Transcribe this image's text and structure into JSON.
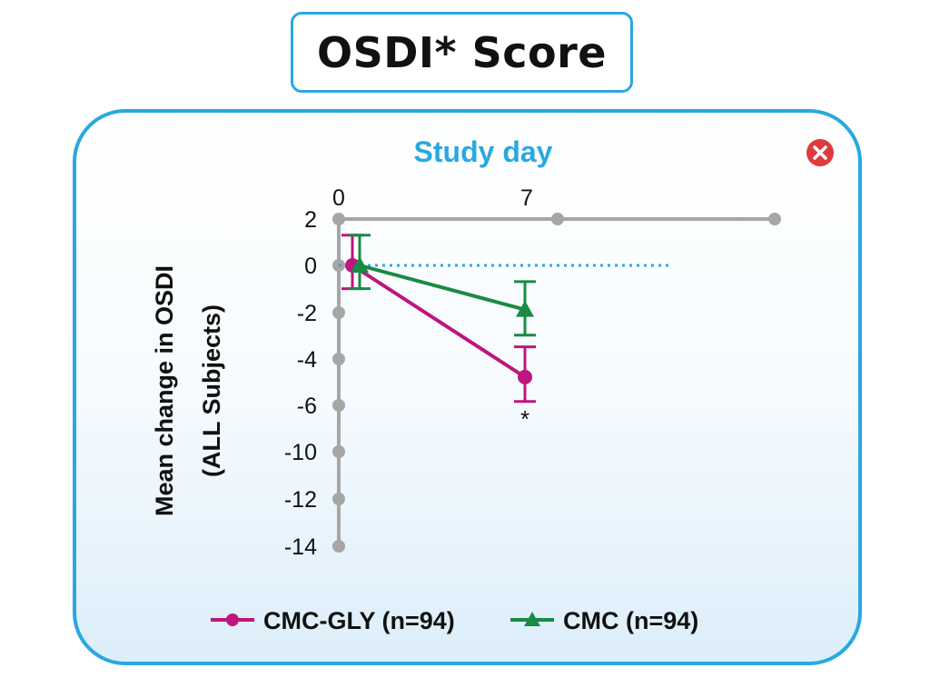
{
  "page": {
    "title": "OSDI* Score"
  },
  "close_button": {
    "icon": "close-icon",
    "color": "#e03a3e"
  },
  "chart_data": {
    "type": "line",
    "title": "",
    "xlabel": "Study day",
    "ylabel_line1": "Mean change in OSDI",
    "ylabel_line2": "(ALL Subjects)",
    "x_tick_labels": [
      "0",
      "7"
    ],
    "y_ticks": [
      "2",
      "0",
      "-2",
      "-4",
      "-6",
      "-10",
      "-12",
      "-14"
    ],
    "series": [
      {
        "name": "CMC-GLY (n=94)",
        "color": "#c0147e",
        "marker": "circle",
        "x": [
          0,
          7
        ],
        "y": [
          0,
          -4.8
        ],
        "err_low": [
          1.0,
          1.05
        ],
        "err_high": [
          1.3,
          1.3
        ]
      },
      {
        "name": "CMC (n=94)",
        "color": "#1a8a45",
        "marker": "triangle",
        "x": [
          0,
          7
        ],
        "y": [
          0,
          -1.9
        ],
        "err_low": [
          1.0,
          1.1
        ],
        "err_high": [
          1.3,
          1.2
        ]
      }
    ],
    "annotation": "*",
    "reference_line": {
      "y": 0,
      "style": "dotted",
      "color": "#29a8e0"
    },
    "axis_color": "#a6a6a6",
    "legend_placement": "bottom-center"
  }
}
